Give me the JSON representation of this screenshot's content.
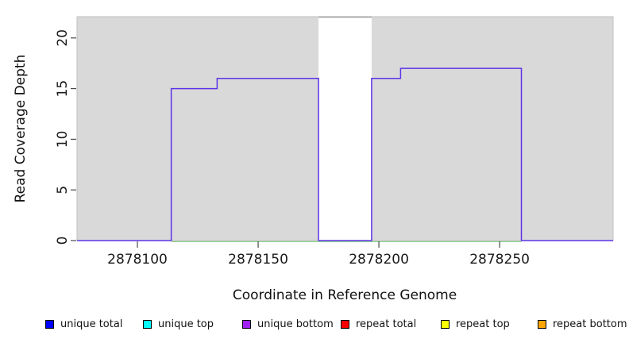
{
  "chart_data": {
    "type": "line",
    "step": true,
    "title": "",
    "xlabel": "Coordinate in Reference Genome",
    "ylabel": "Read Coverage Depth",
    "xlim": [
      2878075,
      2878297
    ],
    "ylim": [
      0,
      22.1
    ],
    "x_ticks": [
      2878100,
      2878150,
      2878200,
      2878250
    ],
    "y_ticks": [
      0,
      5,
      10,
      15,
      20
    ],
    "grid": false,
    "panel_fill": "#d9d9d9",
    "panel_border": "#bfbfbf",
    "masked_region": {
      "x_start": 2878175,
      "x_end": 2878197,
      "fill": "#ffffff",
      "top_border_color": "#8e8e8e",
      "note": "white column through plot where coverage is masked"
    },
    "series": [
      {
        "name": "unique bottom coverage step line",
        "color": "#5c33e8",
        "points": [
          [
            2878075,
            0
          ],
          [
            2878114,
            0
          ],
          [
            2878114,
            15
          ],
          [
            2878133,
            15
          ],
          [
            2878133,
            16
          ],
          [
            2878175,
            16
          ],
          [
            2878175,
            0
          ],
          [
            2878197,
            0
          ],
          [
            2878197,
            16
          ],
          [
            2878209,
            16
          ],
          [
            2878209,
            17
          ],
          [
            2878259,
            17
          ],
          [
            2878259,
            0
          ],
          [
            2878297,
            0
          ]
        ]
      },
      {
        "name": "zero-depth overlay line",
        "color": "#7cc87c",
        "x_start": 2878114,
        "x_end": 2878259,
        "value": 0
      }
    ],
    "axis_tick_color": "#4a4a4a"
  },
  "legend": {
    "items": [
      {
        "label": "unique total",
        "color": "#0000ff"
      },
      {
        "label": "unique top",
        "color": "#00ffff"
      },
      {
        "label": "unique bottom",
        "color": "#a020f0"
      },
      {
        "label": "repeat total",
        "color": "#ff0000"
      },
      {
        "label": "repeat top",
        "color": "#ffff00"
      },
      {
        "label": "repeat bottom",
        "color": "#ffa500"
      }
    ]
  }
}
